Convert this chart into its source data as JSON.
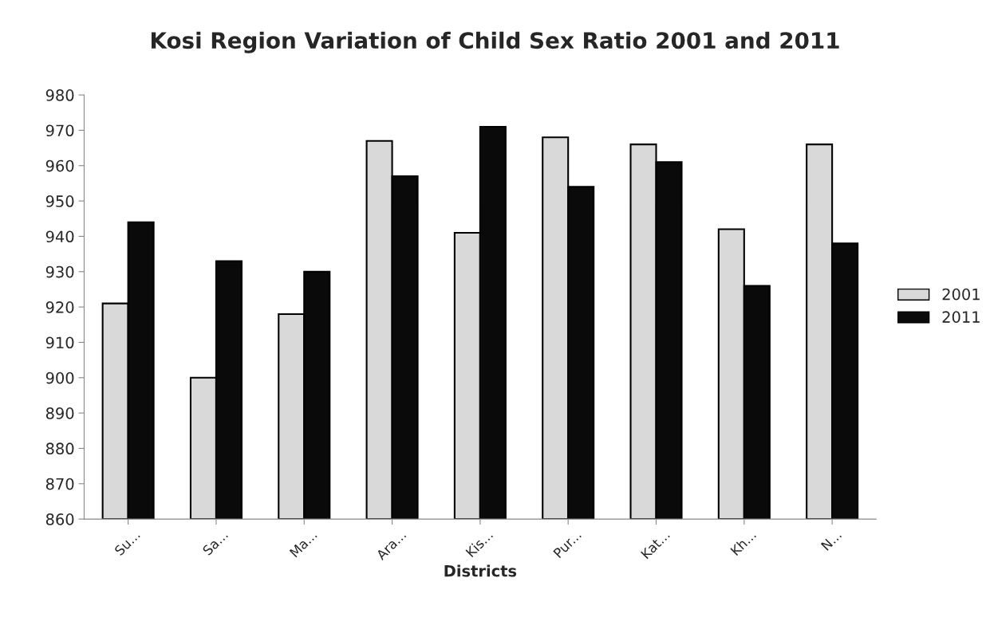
{
  "chart_data": {
    "type": "bar",
    "title": "Kosi Region Variation of Child Sex Ratio 2001 and 2011",
    "xlabel": "Districts",
    "categories": [
      "Su...",
      "Sa...",
      "Ma...",
      "Ara...",
      "Kis...",
      "Pur...",
      "Kat...",
      "Kh...",
      "N..."
    ],
    "series": [
      {
        "name": "2001",
        "color": "#d9d9d9",
        "values": [
          921,
          900,
          918,
          967,
          941,
          968,
          966,
          942,
          966
        ]
      },
      {
        "name": "2011",
        "color": "#0a0a0a",
        "values": [
          944,
          933,
          930,
          957,
          971,
          954,
          961,
          926,
          938
        ]
      }
    ],
    "ylim": [
      860,
      980
    ],
    "yticks": [
      860,
      870,
      880,
      890,
      900,
      910,
      920,
      930,
      940,
      950,
      960,
      970,
      980
    ],
    "grid": false,
    "legend": "right"
  }
}
